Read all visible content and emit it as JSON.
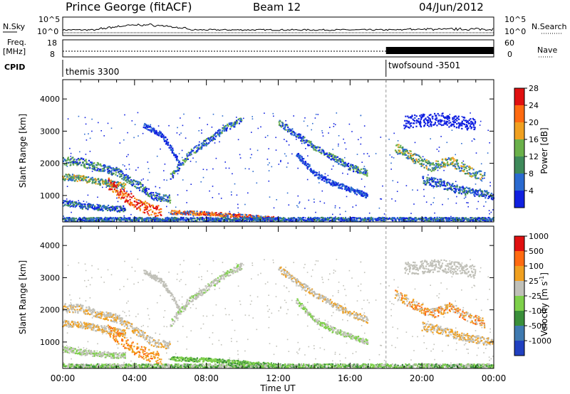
{
  "header": {
    "station": "Prince George (fitACF)",
    "beam": "Beam 12",
    "date": "04/Jun/2012"
  },
  "chart_data": [
    {
      "type": "line",
      "panel": "noise",
      "left_label": "N.Sky",
      "right_label": "N.Search",
      "left_ticks": [
        "10^5",
        "10^0"
      ],
      "right_ticks": [
        "10^5",
        "10^0"
      ]
    },
    {
      "type": "line",
      "panel": "frequency",
      "left_label_1": "Freq.",
      "left_label_2": "[MHz]",
      "right_label": "Nave",
      "left_ticks": [
        "18",
        "8"
      ],
      "right_ticks": [
        "60",
        "0"
      ],
      "nave_high_start_hour": 18.0
    },
    {
      "type": "table",
      "panel": "cpid",
      "label": "CPID",
      "segments": [
        {
          "name": "themis 3300",
          "start_hour": 0,
          "end_hour": 18.0
        },
        {
          "name": "twofsound -3501",
          "start_hour": 18.0,
          "end_hour": 24
        }
      ]
    },
    {
      "type": "heatmap",
      "panel": "power",
      "ylabel": "Slant Range [km]",
      "yticks": [
        1000,
        2000,
        3000,
        4000
      ],
      "ylim": [
        180,
        4600
      ],
      "xlim_hours": [
        0,
        24
      ],
      "colorbar_label": "Power [dB]",
      "colorbar_ticks": [
        4,
        8,
        12,
        16,
        20,
        24,
        28
      ],
      "colors": [
        "#1020e0",
        "#2a6ad0",
        "#3e8a5a",
        "#6ab04a",
        "#f0a020",
        "#ff6a10",
        "#e01010"
      ]
    },
    {
      "type": "heatmap",
      "panel": "velocity",
      "ylabel": "Slant Range [km]",
      "yticks": [
        1000,
        2000,
        3000,
        4000
      ],
      "ylim": [
        180,
        4600
      ],
      "xlim_hours": [
        0,
        24
      ],
      "xticks": [
        "00:00",
        "04:00",
        "08:00",
        "12:00",
        "16:00",
        "20:00",
        "00:00"
      ],
      "xlabel": "Time UT",
      "colorbar_label": "Velocity [m s",
      "colorbar_exponent": "-1",
      "colorbar_ticks": [
        "1000",
        "500",
        "100",
        "25",
        "-25",
        "-100",
        "-500",
        "-1000"
      ],
      "colors": [
        "#2040c0",
        "#3f7ab0",
        "#3a8f3a",
        "#7ed04a",
        "#c0c0b8",
        "#f0a020",
        "#ff6a10",
        "#e01010"
      ]
    }
  ]
}
